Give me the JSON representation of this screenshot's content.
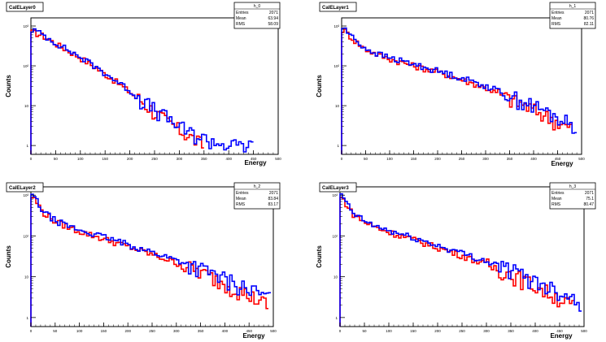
{
  "chart_data": [
    {
      "type": "line",
      "title": "CalELayer0",
      "xlabel": "Energy",
      "ylabel": "Counts",
      "xlim": [
        0,
        500
      ],
      "ylim": [
        0.6,
        1600
      ],
      "log_y": true,
      "grid": false,
      "x_ticks": [
        "0",
        "50",
        "100",
        "150",
        "200",
        "250",
        "300",
        "350",
        "400",
        "450",
        "500"
      ],
      "y_ticks": [
        "1",
        "10",
        "10²",
        "10³"
      ],
      "stats": {
        "title": "h_0",
        "entries_label": "Entries",
        "entries": "2071",
        "mean_label": "Mean",
        "mean": "63.94",
        "rms_label": "RMS",
        "rms": "58.09"
      },
      "series": [
        {
          "color": "#ff0000",
          "x": [
            5,
            25,
            50,
            75,
            100,
            125,
            150,
            175,
            200,
            225,
            250,
            275,
            300,
            325,
            350
          ],
          "y": [
            700,
            560,
            360,
            240,
            160,
            100,
            62,
            38,
            22,
            13,
            7,
            4,
            2.5,
            1.6,
            1
          ]
        },
        {
          "color": "#0000ff",
          "x": [
            5,
            25,
            50,
            75,
            100,
            125,
            150,
            175,
            200,
            225,
            250,
            275,
            300,
            325,
            350,
            375,
            400,
            425,
            450
          ],
          "y": [
            800,
            600,
            380,
            250,
            165,
            105,
            65,
            40,
            24,
            14,
            8,
            5,
            3,
            2,
            1.5,
            1.2,
            1,
            1,
            1
          ]
        }
      ]
    },
    {
      "type": "line",
      "title": "CalELayer1",
      "xlabel": "Energy",
      "ylabel": "Counts",
      "xlim": [
        0,
        500
      ],
      "ylim": [
        0.6,
        1600
      ],
      "log_y": true,
      "grid": false,
      "x_ticks": [
        "0",
        "50",
        "100",
        "150",
        "200",
        "250",
        "300",
        "350",
        "400",
        "450",
        "500"
      ],
      "y_ticks": [
        "1",
        "10",
        "10²",
        "10³"
      ],
      "stats": {
        "title": "h_1",
        "entries_label": "Entries",
        "entries": "2071",
        "mean_label": "Mean",
        "mean": "80.76",
        "rms_label": "RMS",
        "rms": "82.11"
      },
      "series": [
        {
          "color": "#ff0000",
          "x": [
            5,
            25,
            50,
            75,
            100,
            150,
            200,
            250,
            300,
            350,
            400,
            450,
            480
          ],
          "y": [
            800,
            450,
            260,
            190,
            150,
            100,
            70,
            45,
            28,
            15,
            8,
            4,
            2.5
          ]
        },
        {
          "color": "#0000ff",
          "x": [
            5,
            25,
            50,
            75,
            100,
            150,
            200,
            250,
            300,
            350,
            400,
            450,
            490
          ],
          "y": [
            900,
            480,
            270,
            200,
            160,
            110,
            75,
            50,
            32,
            18,
            10,
            5,
            3
          ]
        }
      ]
    },
    {
      "type": "line",
      "title": "CalELayer2",
      "xlabel": "Energy",
      "ylabel": "Counts",
      "xlim": [
        0,
        500
      ],
      "ylim": [
        0.6,
        1600
      ],
      "log_y": true,
      "grid": false,
      "x_ticks": [
        "0",
        "50",
        "100",
        "150",
        "200",
        "250",
        "300",
        "350",
        "400",
        "450",
        "500"
      ],
      "y_ticks": [
        "1",
        "10",
        "10²",
        "10³"
      ],
      "stats": {
        "title": "h_2",
        "entries_label": "Entries",
        "entries": "2071",
        "mean_label": "Mean",
        "mean": "83.84",
        "rms_label": "RMS",
        "rms": "83.17"
      },
      "series": [
        {
          "color": "#ff0000",
          "x": [
            5,
            25,
            50,
            75,
            100,
            150,
            200,
            250,
            300,
            350,
            400,
            450,
            490
          ],
          "y": [
            900,
            380,
            230,
            170,
            130,
            85,
            55,
            35,
            22,
            13,
            7,
            3.5,
            2
          ]
        },
        {
          "color": "#0000ff",
          "x": [
            5,
            25,
            50,
            75,
            100,
            150,
            200,
            250,
            300,
            350,
            400,
            450,
            495
          ],
          "y": [
            1000,
            400,
            240,
            180,
            140,
            95,
            62,
            40,
            26,
            16,
            9,
            5,
            3
          ]
        }
      ]
    },
    {
      "type": "line",
      "title": "CalELayer3",
      "xlabel": "Energy",
      "ylabel": "Counts",
      "xlim": [
        0,
        500
      ],
      "ylim": [
        0.6,
        1600
      ],
      "log_y": true,
      "grid": false,
      "x_ticks": [
        "0",
        "50",
        "100",
        "150",
        "200",
        "250",
        "300",
        "350",
        "400",
        "450",
        "500"
      ],
      "y_ticks": [
        "1",
        "10",
        "10²",
        "10³"
      ],
      "stats": {
        "title": "h_3",
        "entries_label": "Entries",
        "entries": "2071",
        "mean_label": "Mean",
        "mean": "75.1",
        "rms_label": "RMS",
        "rms": "80.47"
      },
      "series": [
        {
          "color": "#ff0000",
          "x": [
            5,
            25,
            50,
            75,
            100,
            150,
            200,
            250,
            300,
            350,
            400,
            450,
            480
          ],
          "y": [
            850,
            360,
            220,
            160,
            125,
            82,
            52,
            33,
            20,
            12,
            6,
            3,
            1.8
          ]
        },
        {
          "color": "#0000ff",
          "x": [
            5,
            25,
            50,
            75,
            100,
            150,
            200,
            250,
            300,
            350,
            400,
            450,
            495
          ],
          "y": [
            950,
            380,
            230,
            170,
            135,
            90,
            58,
            38,
            24,
            15,
            8,
            4.5,
            2.5
          ]
        }
      ]
    }
  ]
}
